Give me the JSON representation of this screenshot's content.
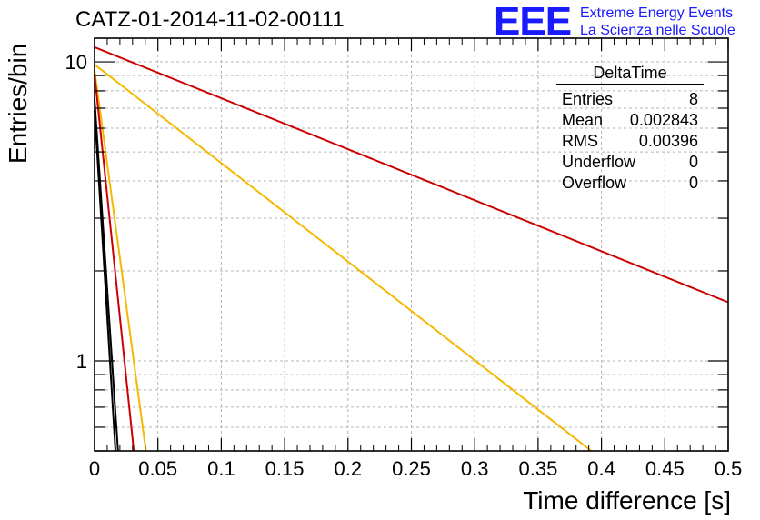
{
  "title": "CATZ-01-2014-11-02-00111",
  "logo": {
    "mark": "EEE",
    "line1": "Extreme Energy Events",
    "line2": "La Scienza nelle Scuole",
    "color": "#1a1aff"
  },
  "stats_box": {
    "title": "DeltaTime",
    "rows": [
      {
        "label": "Entries",
        "value": "8"
      },
      {
        "label": "Mean",
        "value": "0.002843"
      },
      {
        "label": "RMS",
        "value": "0.00396"
      },
      {
        "label": "Underflow",
        "value": "0"
      },
      {
        "label": "Overflow",
        "value": "0"
      }
    ]
  },
  "chart_data": {
    "type": "line",
    "xlabel": "Time difference [s]",
    "ylabel": "Entries/bin",
    "xlim": [
      0,
      0.5
    ],
    "ylim": [
      0.5,
      12
    ],
    "ylog": true,
    "grid": true,
    "x_ticks": [
      "0",
      "0.05",
      "0.1",
      "0.15",
      "0.2",
      "0.25",
      "0.3",
      "0.35",
      "0.4",
      "0.45",
      "0.5"
    ],
    "y_ticks": [
      "1",
      "10"
    ],
    "series": [
      {
        "color": "#cc0000",
        "x": [
          0,
          0.5
        ],
        "y": [
          11.2,
          1.57
        ]
      },
      {
        "color": "#f5b800",
        "x": [
          0,
          0.392
        ],
        "y": [
          9.8,
          0.5
        ]
      },
      {
        "color": "#f5b800",
        "x": [
          0,
          0.0405
        ],
        "y": [
          9.4,
          0.5
        ]
      },
      {
        "color": "#cc0000",
        "x": [
          0,
          0.031
        ],
        "y": [
          9.1,
          0.5
        ]
      },
      {
        "color": "#000000",
        "x": [
          0,
          0.0185
        ],
        "y": [
          7.5,
          0.5
        ]
      },
      {
        "color": "#000000",
        "x": [
          0,
          0.0165
        ],
        "y": [
          6.9,
          0.5
        ]
      }
    ]
  }
}
